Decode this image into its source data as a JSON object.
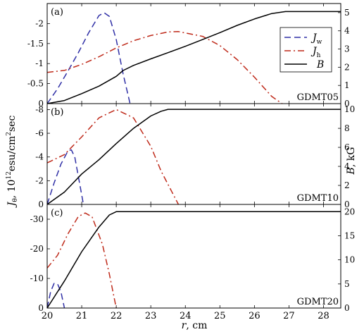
{
  "chart_data": [
    {
      "type": "line",
      "panel_label": "(a)",
      "case_label": "GDMT05",
      "ylim_left": [
        0,
        -2.5
      ],
      "left_ticks": [
        0,
        -0.5,
        -1,
        -1.5,
        -2
      ],
      "left_tick_labels": [
        "0",
        "-0.5",
        "-1",
        "-1.5",
        "-2"
      ],
      "ylim_right": [
        0,
        5.5
      ],
      "right_ticks": [
        0,
        1,
        2,
        3,
        4,
        5
      ],
      "right_tick_labels": [
        "0",
        "1",
        "2",
        "3",
        "4",
        "5"
      ],
      "series": [
        {
          "key": "Jw",
          "axis": "left",
          "x": [
            20.0,
            20.3,
            20.6,
            20.9,
            21.2,
            21.5,
            21.65,
            21.8,
            22.0,
            22.2,
            22.4
          ],
          "y": [
            0,
            -0.37,
            -0.81,
            -1.27,
            -1.77,
            -2.2,
            -2.27,
            -2.18,
            -1.6,
            -0.74,
            0
          ]
        },
        {
          "key": "Jh",
          "axis": "left",
          "x": [
            20.0,
            20.5,
            21.0,
            21.5,
            22.0,
            22.5,
            23.0,
            23.5,
            23.8,
            24.5,
            25.0,
            25.5,
            26.0,
            26.5,
            26.8
          ],
          "y": [
            -0.78,
            -0.83,
            -0.98,
            -1.17,
            -1.39,
            -1.57,
            -1.7,
            -1.79,
            -1.8,
            -1.68,
            -1.45,
            -1.1,
            -0.66,
            -0.18,
            0
          ]
        },
        {
          "key": "B",
          "axis": "right",
          "x": [
            20.0,
            20.5,
            21.0,
            21.5,
            22.0,
            22.2,
            22.5,
            23.0,
            23.5,
            24.0,
            24.5,
            25.0,
            25.5,
            26.0,
            26.5,
            26.9,
            28.5
          ],
          "y": [
            0,
            0.17,
            0.55,
            0.96,
            1.5,
            1.82,
            2.1,
            2.46,
            2.8,
            3.15,
            3.52,
            3.9,
            4.3,
            4.65,
            4.95,
            5.06,
            5.06
          ]
        }
      ]
    },
    {
      "type": "line",
      "panel_label": "(b)",
      "case_label": "GDMT10",
      "ylim_left": [
        0,
        -8.5
      ],
      "left_ticks": [
        0,
        -2,
        -4,
        -6,
        -8
      ],
      "left_tick_labels": [
        "0",
        "-2",
        "-4",
        "-6",
        "-8"
      ],
      "ylim_right": [
        0,
        10.6
      ],
      "right_ticks": [
        0,
        2,
        4,
        6,
        8,
        10
      ],
      "right_tick_labels": [
        "0",
        "2",
        "4",
        "6",
        "8",
        "10"
      ],
      "series": [
        {
          "key": "Jw",
          "axis": "left",
          "x": [
            20.0,
            20.2,
            20.4,
            20.6,
            20.7,
            20.8,
            20.95,
            21.05
          ],
          "y": [
            0,
            -1.8,
            -3.4,
            -4.5,
            -4.6,
            -4.0,
            -1.6,
            0
          ]
        },
        {
          "key": "Jh",
          "axis": "left",
          "x": [
            20.0,
            20.5,
            21.0,
            21.5,
            22.0,
            22.5,
            23.0,
            23.3,
            23.8
          ],
          "y": [
            -3.5,
            -4.2,
            -5.7,
            -7.3,
            -8.0,
            -7.3,
            -4.9,
            -2.8,
            0
          ]
        },
        {
          "key": "B",
          "axis": "right",
          "x": [
            20.0,
            20.5,
            21.0,
            21.5,
            22.0,
            22.5,
            23.0,
            23.3,
            23.5,
            24.0,
            28.5
          ],
          "y": [
            0,
            1.3,
            3.2,
            4.7,
            6.4,
            8.0,
            9.3,
            9.8,
            10.0,
            10.0,
            10.0
          ]
        }
      ]
    },
    {
      "type": "line",
      "panel_label": "(c)",
      "case_label": "GDMT20",
      "ylim_left": [
        0,
        -35
      ],
      "left_ticks": [
        0,
        -10,
        -20,
        -30
      ],
      "left_tick_labels": [
        "0",
        "-10",
        "-20",
        "-30"
      ],
      "ylim_right": [
        0,
        21.5
      ],
      "right_ticks": [
        0,
        5,
        10,
        15,
        20
      ],
      "right_tick_labels": [
        "0",
        "5",
        "10",
        "15",
        "20"
      ],
      "series": [
        {
          "key": "Jw",
          "axis": "left",
          "x": [
            20.0,
            20.1,
            20.2,
            20.3,
            20.4,
            20.5
          ],
          "y": [
            0,
            -5.5,
            -8.3,
            -8.2,
            -5.4,
            0
          ]
        },
        {
          "key": "Jh",
          "axis": "left",
          "x": [
            20.0,
            20.3,
            20.6,
            20.9,
            21.1,
            21.3,
            21.6,
            21.8,
            22.0
          ],
          "y": [
            -13.5,
            -17.8,
            -25.0,
            -30.9,
            -32.1,
            -30.8,
            -21.5,
            -11.5,
            0
          ]
        },
        {
          "key": "B",
          "axis": "right",
          "x": [
            20.0,
            20.5,
            21.0,
            21.5,
            21.8,
            22.0,
            28.5
          ],
          "y": [
            0,
            5.6,
            11.7,
            16.8,
            19.3,
            20.0,
            20.0
          ]
        }
      ]
    }
  ],
  "x_axis": {
    "xlim": [
      20,
      28.5
    ],
    "ticks": [
      20,
      21,
      22,
      23,
      24,
      25,
      26,
      27,
      28
    ],
    "tick_labels": [
      "20",
      "21",
      "22",
      "23",
      "24",
      "25",
      "26",
      "27",
      "28"
    ],
    "label_var": "r",
    "label_unit": ", cm"
  },
  "left_axis_label": {
    "sym": "J",
    "sub": "θ",
    "a": ", 10",
    "sup1": "12",
    "b": "esu/cm",
    "sup2": "2",
    "c": "sec"
  },
  "right_axis_label": {
    "sym": "B",
    "rest": ", kG"
  },
  "legend": {
    "placement": "top-right of panel (a)",
    "entries": [
      {
        "key": "Jw",
        "sym": "J",
        "sub": "w"
      },
      {
        "key": "Jh",
        "sym": "J",
        "sub": "h"
      },
      {
        "key": "B",
        "sym": "B",
        "sub": ""
      }
    ]
  },
  "styles": {
    "Jw": {
      "color": "#2f2fa6",
      "dash": "9,5"
    },
    "Jh": {
      "color": "#bf2a1a",
      "dash": "9,4,2,4"
    },
    "B": {
      "color": "#000000",
      "dash": ""
    }
  }
}
